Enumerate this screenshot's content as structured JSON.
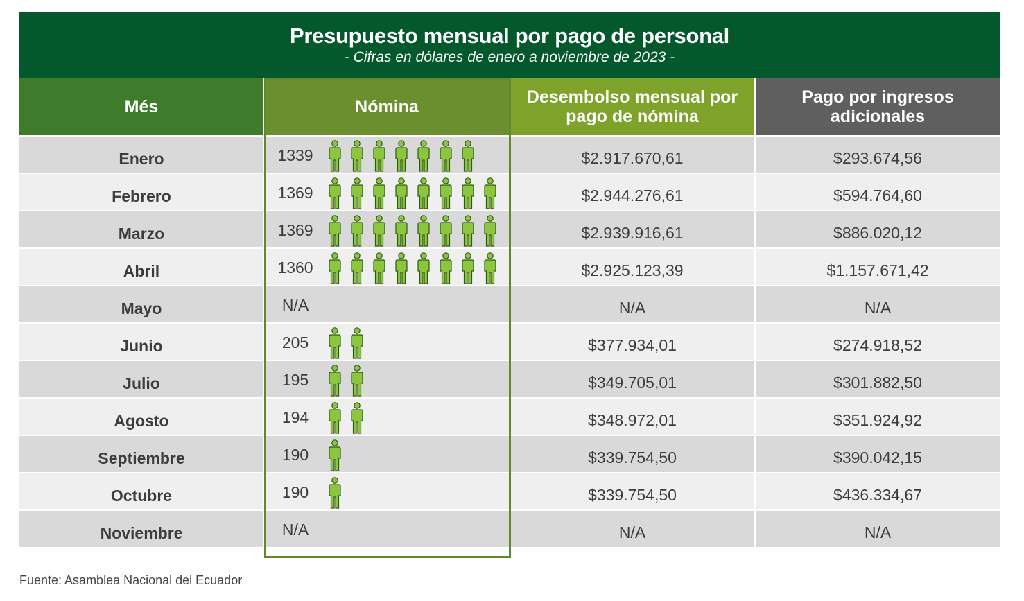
{
  "title": "Presupuesto mensual por pago de personal",
  "subtitle": "- Cifras en dólares de enero a noviembre de 2023 -",
  "headers": {
    "mes": "Més",
    "nomina": "Nómina",
    "desembolso": "Desembolso mensual por pago de nómina",
    "pago": "Pago por ingresos adicionales"
  },
  "colors": {
    "title_bg": "#03592c",
    "header_mes": "#3e7b2b",
    "header_nomina": "#6b8f2f",
    "header_desembolso": "#7fa22b",
    "header_pago": "#5f5f5f",
    "person_icon": "#8cc63f"
  },
  "icon": "person-icon",
  "source": "Fuente: Asamblea Nacional del Ecuador",
  "chart_data": {
    "type": "table",
    "columns": [
      "Més",
      "Nómina",
      "Desembolso mensual por pago de nómina",
      "Pago por ingresos adicionales"
    ],
    "rows": [
      {
        "mes": "Enero",
        "nomina": "1339",
        "icons": 7,
        "desembolso": "$2.917.670,61",
        "pago": "$293.674,56"
      },
      {
        "mes": "Febrero",
        "nomina": "1369",
        "icons": 8,
        "desembolso": "$2.944.276,61",
        "pago": "$594.764,60"
      },
      {
        "mes": "Marzo",
        "nomina": "1369",
        "icons": 8,
        "desembolso": "$2.939.916,61",
        "pago": "$886.020,12"
      },
      {
        "mes": "Abril",
        "nomina": "1360",
        "icons": 8,
        "desembolso": "$2.925.123,39",
        "pago": "$1.157.671,42"
      },
      {
        "mes": "Mayo",
        "nomina": "N/A",
        "icons": 0,
        "desembolso": "N/A",
        "pago": "N/A"
      },
      {
        "mes": "Junio",
        "nomina": "205",
        "icons": 2,
        "desembolso": "$377.934,01",
        "pago": "$274.918,52"
      },
      {
        "mes": "Julio",
        "nomina": "195",
        "icons": 2,
        "desembolso": "$349.705,01",
        "pago": "$301.882,50"
      },
      {
        "mes": "Agosto",
        "nomina": "194",
        "icons": 2,
        "desembolso": "$348.972,01",
        "pago": "$351.924,92"
      },
      {
        "mes": "Septiembre",
        "nomina": "190",
        "icons": 1,
        "desembolso": "$339.754,50",
        "pago": "$390.042,15"
      },
      {
        "mes": "Octubre",
        "nomina": "190",
        "icons": 1,
        "desembolso": "$339.754,50",
        "pago": "$436.334,67"
      },
      {
        "mes": "Noviembre",
        "nomina": "N/A",
        "icons": 0,
        "desembolso": "N/A",
        "pago": "N/A"
      }
    ]
  }
}
